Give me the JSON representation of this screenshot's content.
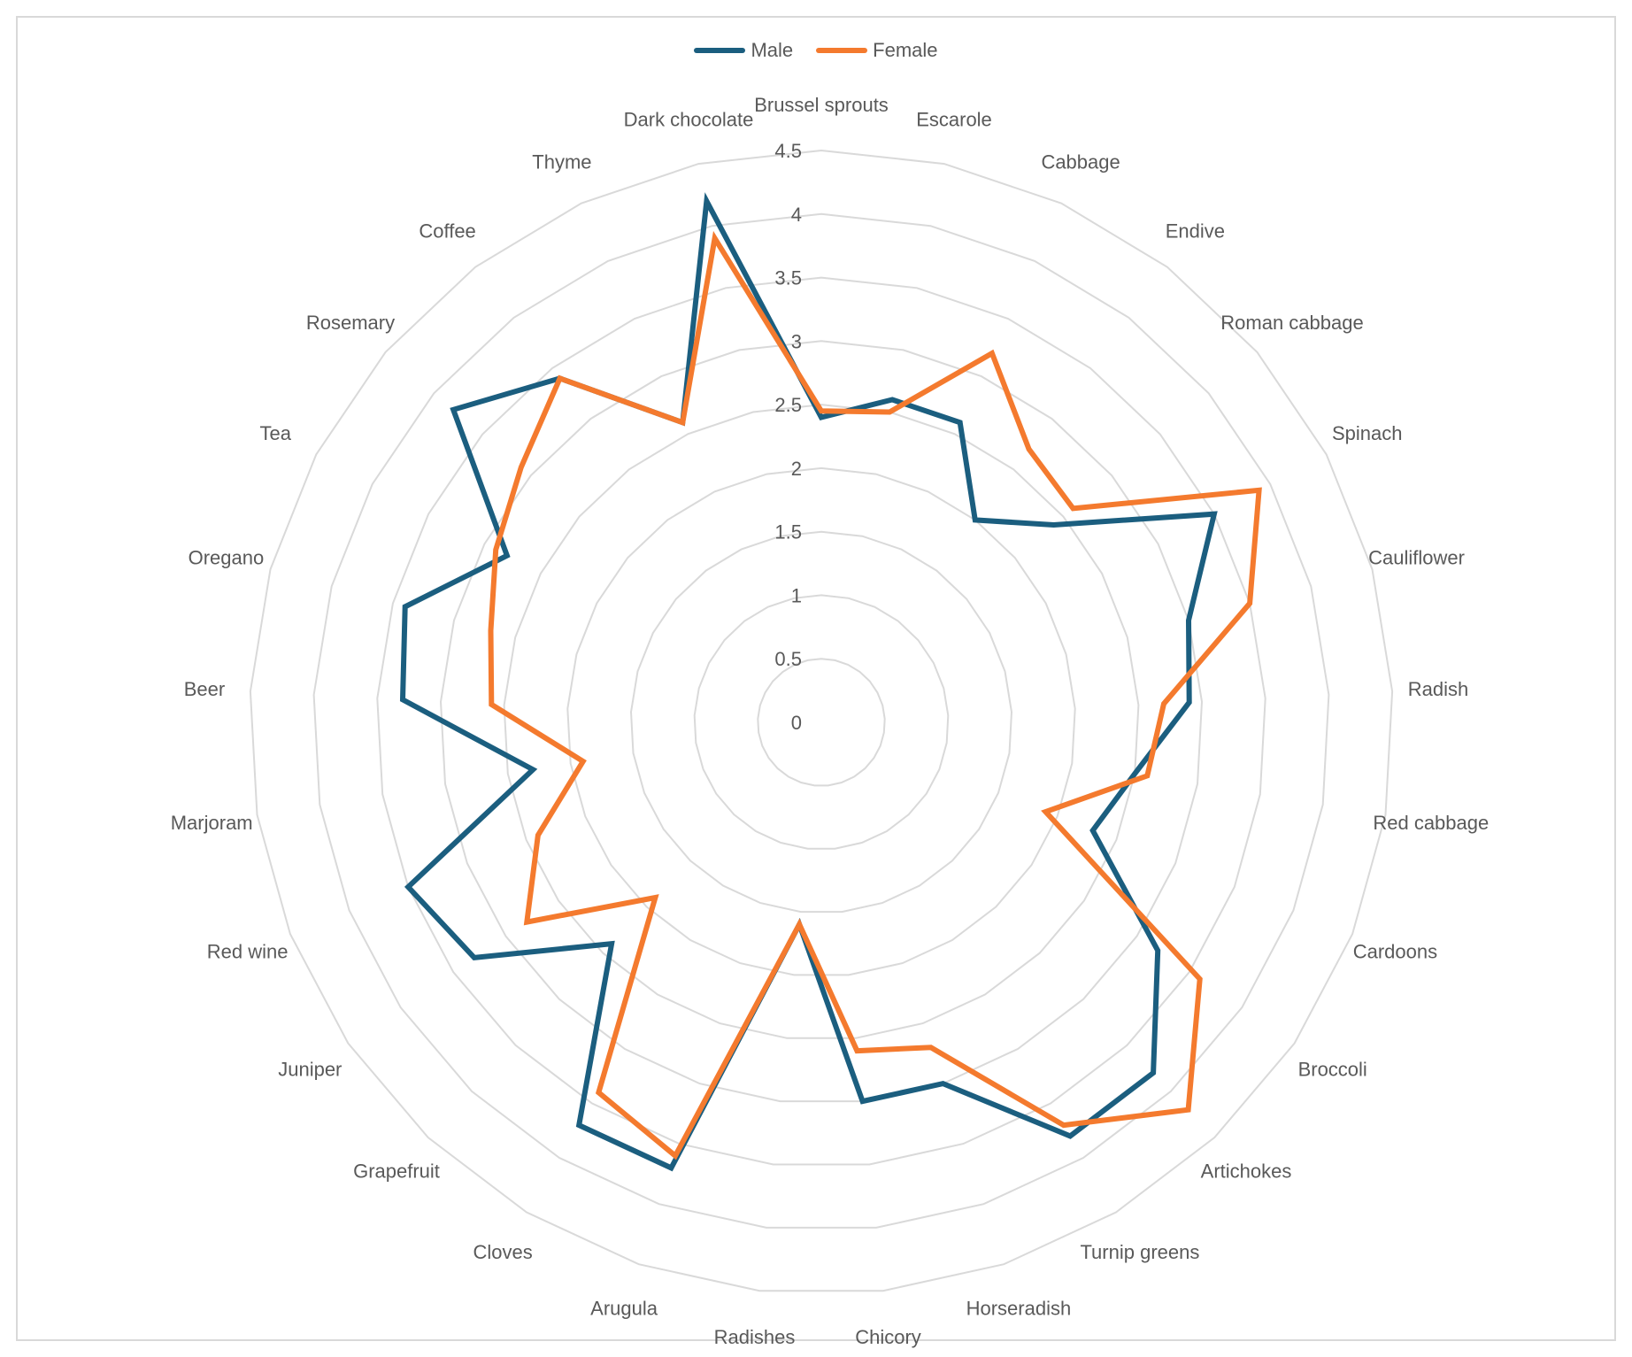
{
  "chart_data": {
    "type": "radar",
    "title": "",
    "legend_position": "top",
    "rmin": 0,
    "rmax": 4.5,
    "ticks": [
      "0",
      "0.5",
      "1",
      "1.5",
      "2",
      "2.5",
      "3",
      "3.5",
      "4",
      "4.5"
    ],
    "tick_values": [
      0,
      0.5,
      1,
      1.5,
      2,
      2.5,
      3,
      3.5,
      4,
      4.5
    ],
    "grid": true,
    "categories": [
      "Brussel sprouts",
      "Escarole",
      "Cabbage",
      "Endive",
      "Roman cabbage",
      "Spinach",
      "Cauliflower",
      "Radish",
      "Red cabbage",
      "Cardoons",
      "Broccoli",
      "Artichokes",
      "Turnip greens",
      "Horseradish",
      "Chicory",
      "Radishes",
      "Arugula",
      "Cloves",
      "Grapefruit",
      "Juniper",
      "Red wine",
      "Marjoram",
      "Beer",
      "Oregano",
      "Tea",
      "Rosemary",
      "Coffee",
      "Thyme",
      "Dark chocolate"
    ],
    "series": [
      {
        "name": "Male",
        "color": "#1b5e7f",
        "values": [
          2.4,
          2.6,
          2.6,
          2.0,
          2.4,
          3.5,
          3.0,
          2.9,
          2.5,
          2.3,
          3.2,
          3.8,
          3.8,
          3.0,
          3.0,
          1.6,
          3.7,
          3.7,
          2.4,
          3.3,
          3.5,
          2.3,
          3.3,
          3.4,
          2.8,
          3.8,
          3.4,
          2.6,
          4.2
        ]
      },
      {
        "name": "Female",
        "color": "#f47a2e",
        "values": [
          2.45,
          2.5,
          3.2,
          2.7,
          2.6,
          3.9,
          3.5,
          2.7,
          2.6,
          1.9,
          3.6,
          4.2,
          3.7,
          2.7,
          2.6,
          1.6,
          3.6,
          3.4,
          1.9,
          2.8,
          2.4,
          1.9,
          2.6,
          2.7,
          2.9,
          3.1,
          3.4,
          2.6,
          3.9
        ]
      }
    ]
  }
}
